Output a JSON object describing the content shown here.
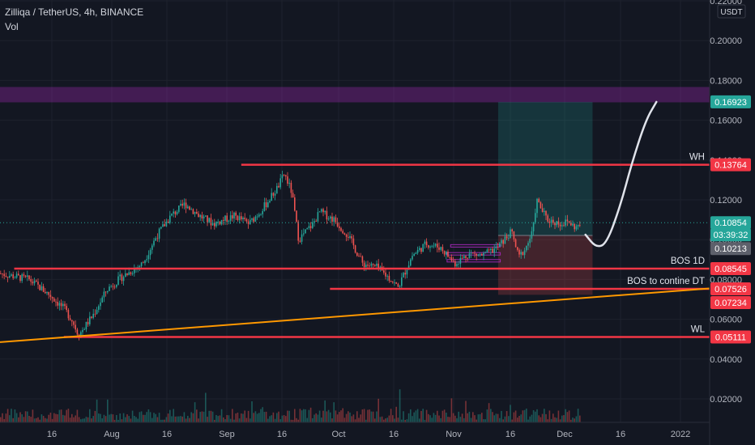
{
  "header": {
    "symbol_line": "Zilliqa / TetherUS, 4h, BINANCE",
    "volume_label": "Vol"
  },
  "chart_data": {
    "type": "candlestick",
    "title": "Zilliqa / TetherUS, 4h, BINANCE",
    "currency": "USDT",
    "ylim": [
      0.003,
      0.223
    ],
    "y_ticks": [
      "0.22000",
      "0.20000",
      "0.18000",
      "0.16000",
      "0.14000",
      "0.12000",
      "0.10000",
      "0.08000",
      "0.06000",
      "0.04000",
      "0.02000"
    ],
    "x_ticks": [
      "16",
      "Aug",
      "16",
      "Sep",
      "16",
      "Oct",
      "16",
      "Nov",
      "16",
      "Dec",
      "16",
      "2022"
    ],
    "grid": true,
    "price_path": [
      [
        0.0,
        0.083
      ],
      [
        0.04,
        0.08
      ],
      [
        0.07,
        0.072
      ],
      [
        0.09,
        0.065
      ],
      [
        0.1,
        0.06
      ],
      [
        0.11,
        0.052
      ],
      [
        0.13,
        0.062
      ],
      [
        0.15,
        0.075
      ],
      [
        0.17,
        0.081
      ],
      [
        0.2,
        0.088
      ],
      [
        0.22,
        0.102
      ],
      [
        0.24,
        0.112
      ],
      [
        0.26,
        0.118
      ],
      [
        0.28,
        0.112
      ],
      [
        0.3,
        0.108
      ],
      [
        0.33,
        0.112
      ],
      [
        0.35,
        0.108
      ],
      [
        0.37,
        0.116
      ],
      [
        0.39,
        0.126
      ],
      [
        0.4,
        0.133
      ],
      [
        0.41,
        0.124
      ],
      [
        0.42,
        0.1
      ],
      [
        0.44,
        0.108
      ],
      [
        0.45,
        0.114
      ],
      [
        0.47,
        0.11
      ],
      [
        0.49,
        0.102
      ],
      [
        0.51,
        0.088
      ],
      [
        0.53,
        0.086
      ],
      [
        0.55,
        0.08
      ],
      [
        0.56,
        0.076
      ],
      [
        0.58,
        0.092
      ],
      [
        0.6,
        0.098
      ],
      [
        0.62,
        0.096
      ],
      [
        0.64,
        0.088
      ],
      [
        0.66,
        0.093
      ],
      [
        0.68,
        0.092
      ],
      [
        0.7,
        0.096
      ],
      [
        0.72,
        0.104
      ],
      [
        0.73,
        0.091
      ],
      [
        0.74,
        0.096
      ],
      [
        0.75,
        0.104
      ],
      [
        0.755,
        0.12
      ],
      [
        0.77,
        0.11
      ],
      [
        0.79,
        0.108
      ],
      [
        0.8,
        0.109
      ],
      [
        0.81,
        0.106
      ],
      [
        0.82,
        0.108
      ]
    ],
    "horizontal_levels": [
      {
        "label": "WH",
        "value": 0.13764,
        "axis_label": "0.13764",
        "color": "#f23645"
      },
      {
        "label": "BOS 1D",
        "value": 0.08545,
        "axis_label": "0.08545",
        "color": "#f23645"
      },
      {
        "label": "BOS to contine DT",
        "value": 0.07526,
        "axis_label": "0.07526",
        "color": "#f23645"
      },
      {
        "label": "WL",
        "value": 0.05111,
        "axis_label": "0.05111",
        "color": "#f23645"
      }
    ],
    "trendline": {
      "from_value": 0.0485,
      "to_value": 0.0755,
      "color": "#ff9800",
      "axis_label": "0.07234"
    },
    "supply_zone": {
      "low": 0.1692,
      "high": 0.1765,
      "color": "#9c27b0"
    },
    "position": {
      "entry": 0.10213,
      "target": 0.16923,
      "stop": 0.0723
    },
    "current_price": {
      "value": 0.10854,
      "countdown": "03:39:32"
    },
    "axis_badges": [
      {
        "text": "0.16923",
        "value": 0.16923,
        "color": "#26a69a"
      },
      {
        "text": "0.13764",
        "value": 0.13764,
        "color": "#f23645"
      },
      {
        "text": "0.10854",
        "value": 0.10854,
        "color": "#26a69a"
      },
      {
        "text": "03:39:32",
        "value": 0.10854,
        "color": "#26a69a",
        "sub": true
      },
      {
        "text": "0.10213",
        "value": 0.10213,
        "color": "#5d606b"
      },
      {
        "text": "0.08545",
        "value": 0.08545,
        "color": "#f23645"
      },
      {
        "text": "0.07526",
        "value": 0.07526,
        "color": "#f23645"
      },
      {
        "text": "0.07234",
        "value": 0.07234,
        "color": "#f23645"
      },
      {
        "text": "0.05111",
        "value": 0.05111,
        "color": "#f23645"
      }
    ],
    "projection_path": [
      [
        0.825,
        0.1025
      ],
      [
        0.84,
        0.096
      ],
      [
        0.855,
        0.098
      ],
      [
        0.875,
        0.118
      ],
      [
        0.89,
        0.138
      ],
      [
        0.91,
        0.16
      ],
      [
        0.925,
        0.1692
      ]
    ]
  },
  "colors": {
    "background": "#131722",
    "grid": "#1e222d",
    "text": "#d1d4dc",
    "up": "#26a69a",
    "down": "#ef5350",
    "level": "#f23645",
    "trend": "#ff9800",
    "zone": "#9c27b0",
    "target_zone": "#1e3a3a",
    "stop_zone": "#3a2428"
  }
}
